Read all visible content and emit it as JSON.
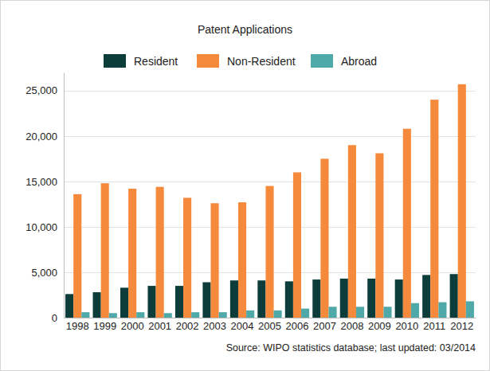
{
  "chart_data": {
    "type": "bar",
    "title": "Patent Applications",
    "source": "Source: WIPO statistics database; last updated: 03/2014",
    "categories": [
      "1998",
      "1999",
      "2000",
      "2001",
      "2002",
      "2003",
      "2004",
      "2005",
      "2006",
      "2007",
      "2008",
      "2009",
      "2010",
      "2011",
      "2012"
    ],
    "series": [
      {
        "name": "Resident",
        "color": "#0d3d3b",
        "values": [
          2600,
          2800,
          3300,
          3500,
          3500,
          3900,
          4100,
          4100,
          4000,
          4200,
          4300,
          4300,
          4200,
          4700,
          4800
        ]
      },
      {
        "name": "Non-Resident",
        "color": "#f58a3c",
        "values": [
          13600,
          14800,
          14200,
          14400,
          13200,
          12600,
          12700,
          14500,
          16000,
          17500,
          19000,
          18100,
          20800,
          24000,
          25700
        ]
      },
      {
        "name": "Abroad",
        "color": "#4fa9a8",
        "values": [
          600,
          500,
          600,
          500,
          600,
          600,
          800,
          800,
          1000,
          1200,
          1200,
          1200,
          1600,
          1700,
          1800
        ]
      }
    ],
    "ylim": [
      0,
      27000
    ],
    "yticks": [
      0,
      {
        "value": 5000,
        "label": "5,000"
      },
      {
        "value": 10000,
        "label": "10,000"
      },
      {
        "value": 15000,
        "label": "15,000"
      },
      {
        "value": 20000,
        "label": "20,000"
      },
      {
        "value": 25000,
        "label": "25,000"
      }
    ],
    "grid": true,
    "legend": "top"
  }
}
